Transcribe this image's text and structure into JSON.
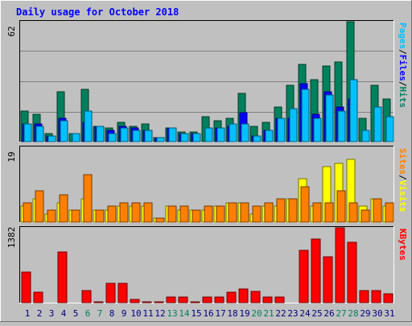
{
  "chart_data": [
    {
      "type": "bar",
      "title": "Daily usage for October 2018",
      "panel": "pages-files-hits",
      "ymax_label": "62",
      "ylim": [
        0,
        62
      ],
      "axis_label_parts": [
        {
          "text": "Pages",
          "color": "#00c0ff"
        },
        {
          "text": "/",
          "color": "#000000"
        },
        {
          "text": "Files",
          "color": "#0000ff"
        },
        {
          "text": "/",
          "color": "#000000"
        },
        {
          "text": "Hits",
          "color": "#008060"
        }
      ],
      "categories": [
        "1",
        "2",
        "3",
        "4",
        "5",
        "6",
        "7",
        "8",
        "9",
        "10",
        "11",
        "12",
        "13",
        "14",
        "15",
        "16",
        "17",
        "18",
        "19",
        "20",
        "21",
        "22",
        "23",
        "24",
        "25",
        "26",
        "27",
        "28",
        "29",
        "30",
        "31"
      ],
      "series": [
        {
          "name": "Hits",
          "color": "#00805c",
          "values": [
            16,
            14,
            4,
            26,
            4,
            27,
            8,
            7,
            10,
            8,
            9,
            2,
            7,
            5,
            5,
            13,
            11,
            12,
            25,
            8,
            10,
            18,
            29,
            40,
            32,
            39,
            41,
            62,
            12,
            29,
            22
          ]
        },
        {
          "name": "Files",
          "color": "#0000ff",
          "values": [
            9,
            9,
            3,
            12,
            0,
            10,
            8,
            6,
            8,
            7,
            6,
            2,
            7,
            4,
            4,
            0,
            7,
            8,
            15,
            3,
            6,
            12,
            12,
            30,
            14,
            26,
            18,
            22,
            0,
            0,
            0
          ]
        },
        {
          "name": "Pages",
          "color": "#00c0ff",
          "values": [
            9,
            8,
            3,
            11,
            4,
            16,
            8,
            4,
            7,
            6,
            6,
            2,
            7,
            4,
            4,
            7,
            7,
            9,
            9,
            3,
            6,
            12,
            17,
            27,
            12,
            24,
            16,
            32,
            6,
            18,
            13
          ]
        }
      ]
    },
    {
      "type": "bar",
      "panel": "sites-visits",
      "ymax_label": "19",
      "ylim": [
        0,
        19
      ],
      "axis_label_parts": [
        {
          "text": "Sites",
          "color": "#ff8000"
        },
        {
          "text": "/",
          "color": "#000000"
        },
        {
          "text": "Visits",
          "color": "#ffff00"
        }
      ],
      "categories": [
        "1",
        "2",
        "3",
        "4",
        "5",
        "6",
        "7",
        "8",
        "9",
        "10",
        "11",
        "12",
        "13",
        "14",
        "15",
        "16",
        "17",
        "18",
        "19",
        "20",
        "21",
        "22",
        "23",
        "24",
        "25",
        "26",
        "27",
        "28",
        "29",
        "30",
        "31"
      ],
      "series": [
        {
          "name": "Visits",
          "color": "#ffff00",
          "values": [
            4,
            6,
            2,
            5,
            3,
            6,
            3,
            3,
            4,
            4,
            4,
            1,
            4,
            3,
            3,
            3,
            4,
            5,
            5,
            2,
            4,
            4,
            6,
            11,
            4,
            14,
            15,
            16,
            4,
            6,
            4
          ]
        },
        {
          "name": "Sites",
          "color": "#ff8000",
          "values": [
            5,
            8,
            3,
            7,
            3,
            12,
            3,
            4,
            5,
            5,
            5,
            1,
            4,
            4,
            3,
            4,
            4,
            5,
            5,
            4,
            5,
            6,
            6,
            9,
            5,
            5,
            8,
            5,
            3,
            6,
            5
          ]
        }
      ]
    },
    {
      "type": "bar",
      "panel": "kbytes",
      "ymax_label": "1382",
      "ylim": [
        0,
        1382
      ],
      "axis_label_parts": [
        {
          "text": "KBytes",
          "color": "#ff0000"
        }
      ],
      "categories": [
        "1",
        "2",
        "3",
        "4",
        "5",
        "6",
        "7",
        "8",
        "9",
        "10",
        "11",
        "12",
        "13",
        "14",
        "15",
        "16",
        "17",
        "18",
        "19",
        "20",
        "21",
        "22",
        "23",
        "24",
        "25",
        "26",
        "27",
        "28",
        "29",
        "30",
        "31"
      ],
      "series": [
        {
          "name": "KBytes",
          "color": "#ff0000",
          "values": [
            560,
            200,
            0,
            930,
            0,
            220,
            20,
            350,
            360,
            60,
            10,
            10,
            110,
            110,
            10,
            110,
            110,
            200,
            250,
            210,
            110,
            110,
            0,
            970,
            1180,
            840,
            1382,
            1120,
            230,
            230,
            160
          ]
        }
      ]
    }
  ],
  "day_labels": [
    {
      "text": "1",
      "color": "#000080"
    },
    {
      "text": "2",
      "color": "#000080"
    },
    {
      "text": "3",
      "color": "#000080"
    },
    {
      "text": "4",
      "color": "#000080"
    },
    {
      "text": "5",
      "color": "#000080"
    },
    {
      "text": "6",
      "color": "#00805c"
    },
    {
      "text": "7",
      "color": "#00805c"
    },
    {
      "text": "8",
      "color": "#000080"
    },
    {
      "text": "9",
      "color": "#000080"
    },
    {
      "text": "10",
      "color": "#000080"
    },
    {
      "text": "11",
      "color": "#000080"
    },
    {
      "text": "12",
      "color": "#000080"
    },
    {
      "text": "13",
      "color": "#00805c"
    },
    {
      "text": "14",
      "color": "#00805c"
    },
    {
      "text": "15",
      "color": "#000080"
    },
    {
      "text": "16",
      "color": "#000080"
    },
    {
      "text": "17",
      "color": "#000080"
    },
    {
      "text": "18",
      "color": "#000080"
    },
    {
      "text": "19",
      "color": "#000080"
    },
    {
      "text": "20",
      "color": "#00805c"
    },
    {
      "text": "21",
      "color": "#00805c"
    },
    {
      "text": "22",
      "color": "#000080"
    },
    {
      "text": "23",
      "color": "#000080"
    },
    {
      "text": "24",
      "color": "#000080"
    },
    {
      "text": "25",
      "color": "#000080"
    },
    {
      "text": "26",
      "color": "#000080"
    },
    {
      "text": "27",
      "color": "#00805c"
    },
    {
      "text": "28",
      "color": "#00805c"
    },
    {
      "text": "29",
      "color": "#000080"
    },
    {
      "text": "30",
      "color": "#000080"
    },
    {
      "text": "31",
      "color": "#000080"
    }
  ],
  "colors": {
    "background": "#c0c0c0",
    "title": "#0000ff",
    "gridline": "#808080"
  },
  "grid": true
}
